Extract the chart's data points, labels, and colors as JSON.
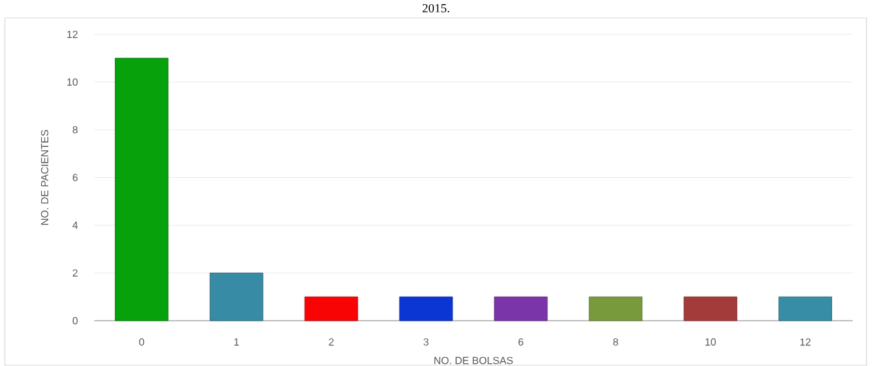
{
  "chart_data": {
    "type": "bar",
    "title": "2015.",
    "xlabel": "NO. DE BOLSAS",
    "ylabel": "NO. DE PACIENTES",
    "categories": [
      "0",
      "1",
      "2",
      "3",
      "6",
      "8",
      "10",
      "12"
    ],
    "values": [
      11,
      2,
      1,
      1,
      1,
      1,
      1,
      1
    ],
    "colors": [
      "#06a10b",
      "#378ba5",
      "#f90404",
      "#0c36d4",
      "#7a35a8",
      "#789a3c",
      "#a33b3b",
      "#388da6"
    ],
    "ylim": [
      0,
      12
    ],
    "yticks": [
      0,
      2,
      4,
      6,
      8,
      10,
      12
    ],
    "grid": "y"
  }
}
